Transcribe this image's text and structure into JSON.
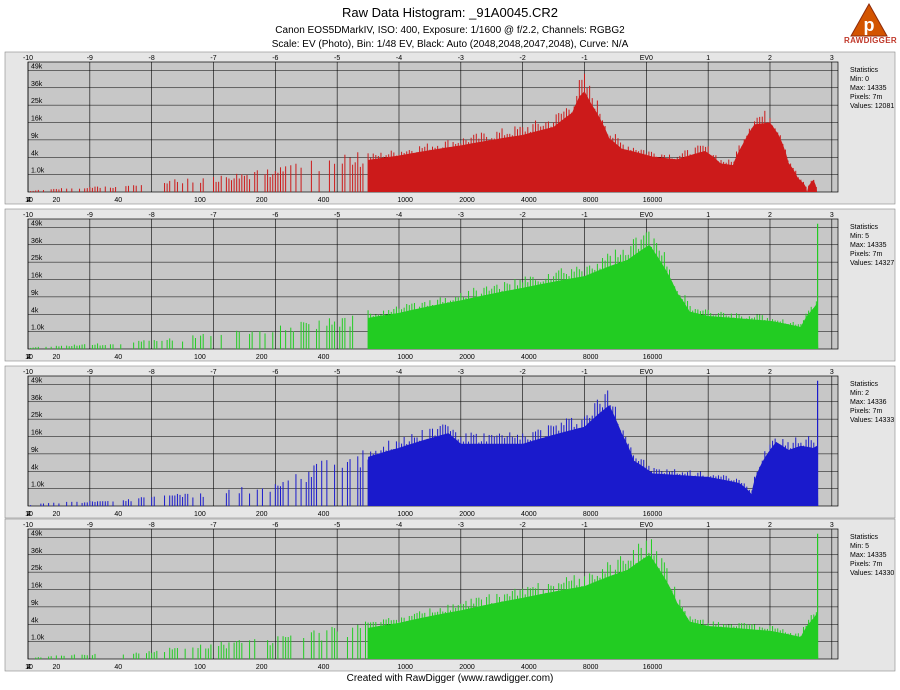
{
  "title": "Raw Data Histogram: _91A0045.CR2",
  "subtitle_camera": "Canon EOS5DMarkIV, ISO: 400, Exposure: 1/1600 @ f/2.2, Channels: RGBG2",
  "subtitle_scale": "Scale: EV (Photo), Bin: 1/48 EV, Black: Auto (2048,2048,2047,2048), Curve: N/A",
  "footer": "Created with RawDigger (www.rawdigger.com)",
  "logo_text": "RAWDIGGER",
  "logo_glyph": "p",
  "colors": {
    "panel_bg": "#c7c7c7",
    "frame_bg": "#e6e6e6",
    "grid": "#000000",
    "logo": "#c0392b"
  },
  "chart_data": [
    {
      "type": "area",
      "channel": "R",
      "color": "#cc1a1a",
      "x_scale": "ev",
      "xlim": [
        -10,
        3.1
      ],
      "top_ticks": [
        "-10",
        "-9",
        "-8",
        "-7",
        "-6",
        "-5",
        "-4",
        "-3",
        "-2",
        "-1",
        "EV0",
        "1",
        "2",
        "3"
      ],
      "top_tick_values": [
        -10,
        -9,
        -8,
        -7,
        -6,
        -5,
        -4,
        -3,
        -2,
        -1,
        0,
        1,
        2,
        3
      ],
      "bottom_ticks": [
        "2",
        "4",
        "10",
        "20",
        "40",
        "100",
        "200",
        "400",
        "1000",
        "2000",
        "4000",
        "8000",
        "16000"
      ],
      "bottom_tick_values": [
        -12.86,
        -11.86,
        -10.54,
        -9.54,
        -8.54,
        -7.22,
        -6.22,
        -5.22,
        -3.9,
        -2.9,
        -1.9,
        -0.9,
        0.1
      ],
      "y_ticks": [
        "49k",
        "36k",
        "25k",
        "16k",
        "9k",
        "4k",
        "1.0k"
      ],
      "y_tick_values": [
        49000,
        36000,
        25000,
        16000,
        9000,
        4000,
        1000
      ],
      "y_scale": "sqrt",
      "ylim": [
        0,
        56000
      ],
      "grid": true,
      "stats_title": "Statistics",
      "stats": [
        "Min: 0",
        "Max: 14335",
        "Pixels: 7m",
        "Values: 12081"
      ],
      "envelope": [
        [
          -10,
          0
        ],
        [
          -8.5,
          100
        ],
        [
          -7,
          600
        ],
        [
          -6,
          1400
        ],
        [
          -5,
          3000
        ],
        [
          -4,
          5500
        ],
        [
          -3,
          9000
        ],
        [
          -2,
          13500
        ],
        [
          -1.5,
          17500
        ],
        [
          -1.2,
          26000
        ],
        [
          -1.08,
          38000
        ],
        [
          -1.0,
          42000
        ],
        [
          -0.9,
          33000
        ],
        [
          -0.6,
          12000
        ],
        [
          -0.4,
          7800
        ],
        [
          0.1,
          5200
        ],
        [
          0.5,
          4400
        ],
        [
          0.95,
          7000
        ],
        [
          1.2,
          3400
        ],
        [
          1.4,
          3000
        ],
        [
          1.55,
          9000
        ],
        [
          1.75,
          19000
        ],
        [
          2.0,
          20000
        ],
        [
          2.15,
          13000
        ],
        [
          2.3,
          3500
        ],
        [
          2.45,
          800
        ],
        [
          2.6,
          0
        ],
        [
          2.7,
          600
        ],
        [
          2.76,
          0
        ],
        [
          3.1,
          0
        ]
      ]
    },
    {
      "type": "area",
      "channel": "G",
      "color": "#22cc22",
      "x_scale": "ev",
      "xlim": [
        -10,
        3.1
      ],
      "top_ticks": [
        "-10",
        "-9",
        "-8",
        "-7",
        "-6",
        "-5",
        "-4",
        "-3",
        "-2",
        "-1",
        "EV0",
        "1",
        "2",
        "3"
      ],
      "top_tick_values": [
        -10,
        -9,
        -8,
        -7,
        -6,
        -5,
        -4,
        -3,
        -2,
        -1,
        0,
        1,
        2,
        3
      ],
      "bottom_ticks": [
        "2",
        "4",
        "10",
        "20",
        "40",
        "100",
        "200",
        "400",
        "1000",
        "2000",
        "4000",
        "8000",
        "16000"
      ],
      "bottom_tick_values": [
        -12.86,
        -11.86,
        -10.54,
        -9.54,
        -8.54,
        -7.22,
        -6.22,
        -5.22,
        -3.9,
        -2.9,
        -1.9,
        -0.9,
        0.1
      ],
      "y_ticks": [
        "49k",
        "36k",
        "25k",
        "16k",
        "9k",
        "4k",
        "1.0k"
      ],
      "y_tick_values": [
        49000,
        36000,
        25000,
        16000,
        9000,
        4000,
        1000
      ],
      "y_scale": "sqrt",
      "ylim": [
        0,
        56000
      ],
      "grid": true,
      "stats_title": "Statistics",
      "stats": [
        "Min: 5",
        "Max: 14335",
        "Pixels: 7m",
        "Values: 14327"
      ],
      "envelope": [
        [
          -10,
          0
        ],
        [
          -8.5,
          100
        ],
        [
          -7.5,
          350
        ],
        [
          -6,
          1200
        ],
        [
          -5,
          2600
        ],
        [
          -4,
          5400
        ],
        [
          -3,
          9800
        ],
        [
          -2,
          15500
        ],
        [
          -1,
          22000
        ],
        [
          -0.3,
          33000
        ],
        [
          0.05,
          45000
        ],
        [
          0.2,
          34000
        ],
        [
          0.5,
          13000
        ],
        [
          0.7,
          5800
        ],
        [
          1.0,
          4500
        ],
        [
          2.0,
          3300
        ],
        [
          2.5,
          2000
        ],
        [
          2.6,
          4600
        ],
        [
          2.7,
          6800
        ],
        [
          2.76,
          8500
        ],
        [
          2.78,
          0
        ],
        [
          3.1,
          0
        ]
      ],
      "spike": [
        2.77,
        52000
      ]
    },
    {
      "type": "area",
      "channel": "B",
      "color": "#1a1acc",
      "x_scale": "ev",
      "xlim": [
        -10,
        3.1
      ],
      "top_ticks": [
        "-10",
        "-9",
        "-8",
        "-7",
        "-6",
        "-5",
        "-4",
        "-3",
        "-2",
        "-1",
        "EV0",
        "1",
        "2",
        "3"
      ],
      "top_tick_values": [
        -10,
        -9,
        -8,
        -7,
        -6,
        -5,
        -4,
        -3,
        -2,
        -1,
        0,
        1,
        2,
        3
      ],
      "bottom_ticks": [
        "2",
        "4",
        "10",
        "20",
        "40",
        "100",
        "200",
        "400",
        "1000",
        "2000",
        "4000",
        "8000",
        "16000"
      ],
      "bottom_tick_values": [
        -12.86,
        -11.86,
        -10.54,
        -9.54,
        -8.54,
        -7.22,
        -6.22,
        -5.22,
        -3.9,
        -2.9,
        -1.9,
        -0.9,
        0.1
      ],
      "y_ticks": [
        "49k",
        "36k",
        "25k",
        "16k",
        "9k",
        "4k",
        "1.0k"
      ],
      "y_tick_values": [
        49000,
        36000,
        25000,
        16000,
        9000,
        4000,
        1000
      ],
      "y_scale": "sqrt",
      "ylim": [
        0,
        56000
      ],
      "grid": true,
      "stats_title": "Statistics",
      "stats": [
        "Min: 2",
        "Max: 14336",
        "Pixels: 7m",
        "Values: 14333"
      ],
      "envelope": [
        [
          -10,
          0
        ],
        [
          -8.5,
          100
        ],
        [
          -7,
          500
        ],
        [
          -6,
          1400
        ],
        [
          -5,
          6000
        ],
        [
          -4,
          14000
        ],
        [
          -3.2,
          22000
        ],
        [
          -3,
          16000
        ],
        [
          -2,
          16000
        ],
        [
          -1,
          26000
        ],
        [
          -0.6,
          42000
        ],
        [
          -0.4,
          22000
        ],
        [
          -0.2,
          8500
        ],
        [
          0.1,
          4400
        ],
        [
          1.0,
          3500
        ],
        [
          1.5,
          2200
        ],
        [
          1.7,
          600
        ],
        [
          1.9,
          9000
        ],
        [
          2.1,
          17000
        ],
        [
          2.3,
          13000
        ],
        [
          2.5,
          15000
        ],
        [
          2.7,
          14000
        ],
        [
          2.76,
          15000
        ],
        [
          2.78,
          0
        ],
        [
          3.1,
          0
        ]
      ],
      "spike": [
        2.77,
        52000
      ]
    },
    {
      "type": "area",
      "channel": "G2",
      "color": "#22cc22",
      "x_scale": "ev",
      "xlim": [
        -10,
        3.1
      ],
      "top_ticks": [
        "-10",
        "-9",
        "-8",
        "-7",
        "-6",
        "-5",
        "-4",
        "-3",
        "-2",
        "-1",
        "EV0",
        "1",
        "2",
        "3"
      ],
      "top_tick_values": [
        -10,
        -9,
        -8,
        -7,
        -6,
        -5,
        -4,
        -3,
        -2,
        -1,
        0,
        1,
        2,
        3
      ],
      "bottom_ticks": [
        "2",
        "4",
        "10",
        "20",
        "40",
        "100",
        "200",
        "400",
        "1000",
        "2000",
        "4000",
        "8000",
        "16000"
      ],
      "bottom_tick_values": [
        -12.86,
        -11.86,
        -10.54,
        -9.54,
        -8.54,
        -7.22,
        -6.22,
        -5.22,
        -3.9,
        -2.9,
        -1.9,
        -0.9,
        0.1
      ],
      "y_ticks": [
        "49k",
        "36k",
        "25k",
        "16k",
        "9k",
        "4k",
        "1.0k"
      ],
      "y_tick_values": [
        49000,
        36000,
        25000,
        16000,
        9000,
        4000,
        1000
      ],
      "y_scale": "sqrt",
      "ylim": [
        0,
        56000
      ],
      "grid": true,
      "stats_title": "Statistics",
      "stats": [
        "Min: 5",
        "Max: 14335",
        "Pixels: 7m",
        "Values: 14330"
      ],
      "envelope": [
        [
          -10,
          0
        ],
        [
          -8.5,
          100
        ],
        [
          -7.5,
          350
        ],
        [
          -6,
          1200
        ],
        [
          -5,
          2600
        ],
        [
          -4,
          5400
        ],
        [
          -3,
          9800
        ],
        [
          -2,
          15500
        ],
        [
          -1,
          22000
        ],
        [
          -0.3,
          33000
        ],
        [
          0.05,
          45000
        ],
        [
          0.2,
          34000
        ],
        [
          0.5,
          13000
        ],
        [
          0.7,
          5800
        ],
        [
          1.0,
          4500
        ],
        [
          2.0,
          3300
        ],
        [
          2.5,
          2000
        ],
        [
          2.6,
          4600
        ],
        [
          2.7,
          6800
        ],
        [
          2.76,
          8500
        ],
        [
          2.78,
          0
        ],
        [
          3.1,
          0
        ]
      ],
      "spike": [
        2.77,
        52000
      ]
    }
  ]
}
